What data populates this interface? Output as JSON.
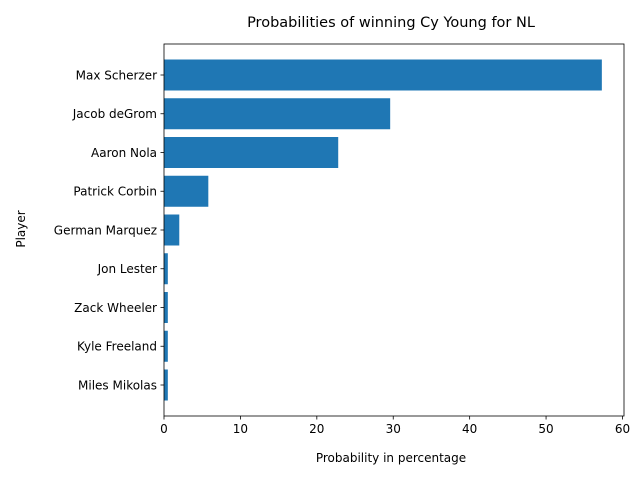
{
  "chart_data": {
    "type": "bar",
    "orientation": "horizontal",
    "title": "Probabilities of winning Cy Young for NL",
    "xlabel": "Probability in percentage",
    "ylabel": "Player",
    "categories": [
      "Miles Mikolas",
      "Kyle Freeland",
      "Zack Wheeler",
      "Jon Lester",
      "German Marquez",
      "Patrick Corbin",
      "Aaron Nola",
      "Jacob deGrom",
      "Max Scherzer"
    ],
    "values": [
      0.5,
      0.5,
      0.5,
      0.5,
      2.0,
      5.8,
      22.8,
      29.6,
      57.3
    ],
    "xlim": [
      0,
      60.2
    ],
    "xticks": [
      0,
      10,
      20,
      30,
      40,
      50,
      60
    ],
    "bar_color": "#1f77b4",
    "grid": false
  }
}
